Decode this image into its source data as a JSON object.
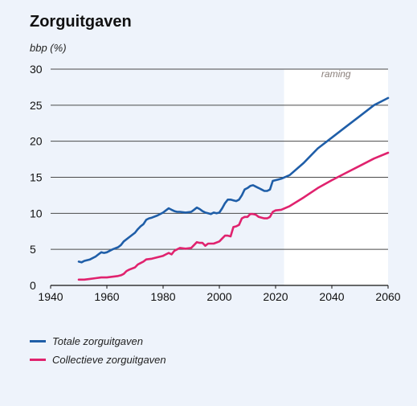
{
  "title": "Zorguitgaven",
  "chart_data": {
    "type": "line",
    "ylabel": "bbp (%)",
    "xlim": [
      1940,
      2060
    ],
    "ylim": [
      0,
      30
    ],
    "x_ticks": [
      "1940",
      "1960",
      "1980",
      "2000",
      "2020",
      "2040",
      "2060"
    ],
    "y_ticks": [
      "0",
      "5",
      "10",
      "15",
      "20",
      "25",
      "30"
    ],
    "grid": "horizontal",
    "forecast_start": 2023,
    "forecast_label": "raming",
    "legend_position": "bottom-left",
    "series": [
      {
        "name": "Totale zorguitgaven",
        "color": "#1f5ea8",
        "points": [
          [
            1950,
            3.3
          ],
          [
            1951,
            3.2
          ],
          [
            1952,
            3.4
          ],
          [
            1954,
            3.6
          ],
          [
            1956,
            4.0
          ],
          [
            1957,
            4.3
          ],
          [
            1958,
            4.6
          ],
          [
            1959,
            4.5
          ],
          [
            1960,
            4.6
          ],
          [
            1962,
            5.0
          ],
          [
            1964,
            5.3
          ],
          [
            1965,
            5.6
          ],
          [
            1966,
            6.1
          ],
          [
            1968,
            6.7
          ],
          [
            1970,
            7.3
          ],
          [
            1971,
            7.8
          ],
          [
            1972,
            8.2
          ],
          [
            1973,
            8.5
          ],
          [
            1974,
            9.1
          ],
          [
            1975,
            9.3
          ],
          [
            1976,
            9.4
          ],
          [
            1978,
            9.7
          ],
          [
            1980,
            10.1
          ],
          [
            1981,
            10.4
          ],
          [
            1982,
            10.7
          ],
          [
            1983,
            10.5
          ],
          [
            1984,
            10.3
          ],
          [
            1985,
            10.2
          ],
          [
            1986,
            10.2
          ],
          [
            1988,
            10.1
          ],
          [
            1990,
            10.2
          ],
          [
            1991,
            10.5
          ],
          [
            1992,
            10.8
          ],
          [
            1993,
            10.6
          ],
          [
            1994,
            10.3
          ],
          [
            1995,
            10.1
          ],
          [
            1996,
            10.0
          ],
          [
            1997,
            9.9
          ],
          [
            1998,
            10.1
          ],
          [
            1999,
            10.0
          ],
          [
            2000,
            10.1
          ],
          [
            2001,
            10.7
          ],
          [
            2002,
            11.4
          ],
          [
            2003,
            11.9
          ],
          [
            2004,
            11.9
          ],
          [
            2005,
            11.8
          ],
          [
            2006,
            11.7
          ],
          [
            2007,
            11.9
          ],
          [
            2008,
            12.5
          ],
          [
            2009,
            13.3
          ],
          [
            2010,
            13.5
          ],
          [
            2011,
            13.8
          ],
          [
            2012,
            13.9
          ],
          [
            2013,
            13.7
          ],
          [
            2014,
            13.5
          ],
          [
            2015,
            13.3
          ],
          [
            2016,
            13.1
          ],
          [
            2017,
            13.1
          ],
          [
            2018,
            13.3
          ],
          [
            2019,
            14.5
          ],
          [
            2020,
            14.6
          ],
          [
            2021,
            14.7
          ],
          [
            2022,
            14.8
          ],
          [
            2025,
            15.3
          ],
          [
            2030,
            17.0
          ],
          [
            2035,
            19.0
          ],
          [
            2040,
            20.5
          ],
          [
            2045,
            22.0
          ],
          [
            2050,
            23.5
          ],
          [
            2055,
            25.0
          ],
          [
            2060,
            26.0
          ]
        ]
      },
      {
        "name": "Collectieve zorguitgaven",
        "color": "#e0226e",
        "points": [
          [
            1950,
            0.8
          ],
          [
            1952,
            0.8
          ],
          [
            1954,
            0.9
          ],
          [
            1956,
            1.0
          ],
          [
            1958,
            1.1
          ],
          [
            1960,
            1.1
          ],
          [
            1962,
            1.2
          ],
          [
            1964,
            1.3
          ],
          [
            1965,
            1.4
          ],
          [
            1966,
            1.6
          ],
          [
            1967,
            2.0
          ],
          [
            1968,
            2.2
          ],
          [
            1970,
            2.5
          ],
          [
            1971,
            2.9
          ],
          [
            1972,
            3.1
          ],
          [
            1973,
            3.3
          ],
          [
            1974,
            3.6
          ],
          [
            1976,
            3.7
          ],
          [
            1978,
            3.9
          ],
          [
            1980,
            4.1
          ],
          [
            1981,
            4.3
          ],
          [
            1982,
            4.5
          ],
          [
            1983,
            4.3
          ],
          [
            1984,
            4.8
          ],
          [
            1985,
            5.0
          ],
          [
            1986,
            5.2
          ],
          [
            1988,
            5.1
          ],
          [
            1990,
            5.2
          ],
          [
            1991,
            5.6
          ],
          [
            1992,
            6.0
          ],
          [
            1993,
            5.9
          ],
          [
            1994,
            5.9
          ],
          [
            1995,
            5.5
          ],
          [
            1996,
            5.8
          ],
          [
            1998,
            5.8
          ],
          [
            2000,
            6.1
          ],
          [
            2001,
            6.5
          ],
          [
            2002,
            6.9
          ],
          [
            2003,
            6.9
          ],
          [
            2004,
            6.8
          ],
          [
            2005,
            8.1
          ],
          [
            2006,
            8.2
          ],
          [
            2007,
            8.4
          ],
          [
            2008,
            9.3
          ],
          [
            2009,
            9.5
          ],
          [
            2010,
            9.5
          ],
          [
            2011,
            9.9
          ],
          [
            2012,
            9.9
          ],
          [
            2013,
            9.8
          ],
          [
            2014,
            9.5
          ],
          [
            2015,
            9.4
          ],
          [
            2016,
            9.3
          ],
          [
            2017,
            9.3
          ],
          [
            2018,
            9.5
          ],
          [
            2019,
            10.2
          ],
          [
            2020,
            10.4
          ],
          [
            2022,
            10.5
          ],
          [
            2025,
            11.0
          ],
          [
            2030,
            12.2
          ],
          [
            2035,
            13.5
          ],
          [
            2040,
            14.6
          ],
          [
            2045,
            15.6
          ],
          [
            2050,
            16.6
          ],
          [
            2055,
            17.6
          ],
          [
            2060,
            18.4
          ]
        ]
      }
    ]
  }
}
